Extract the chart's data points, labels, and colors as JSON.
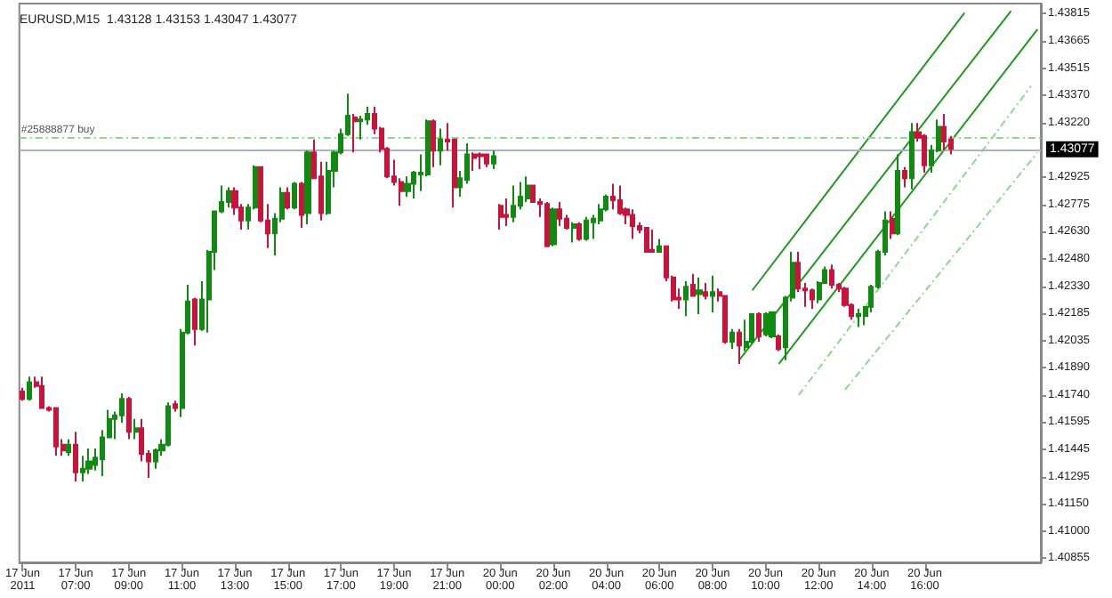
{
  "chart_data": {
    "type": "candlestick",
    "title": "EURUSD,M15  1.43128 1.43153 1.43047 1.43077",
    "categories": [
      "17 Jun 2011",
      null,
      null,
      null,
      null,
      null,
      null,
      null,
      "17 Jun 07:00",
      null,
      null,
      null,
      null,
      null,
      null,
      null,
      "17 Jun 09:00",
      null,
      null,
      null,
      null,
      null,
      null,
      null,
      "17 Jun 11:00",
      null,
      null,
      null,
      null,
      null,
      null,
      null,
      "17 Jun 13:00",
      null,
      null,
      null,
      null,
      null,
      null,
      null,
      "17 Jun 15:00",
      null,
      null,
      null,
      null,
      null,
      null,
      null,
      "17 Jun 17:00",
      null,
      null,
      null,
      null,
      null,
      null,
      null,
      "17 Jun 19:00",
      null,
      null,
      null,
      null,
      null,
      null,
      null,
      "17 Jun 21:00",
      null,
      null,
      null,
      null,
      null,
      null,
      null,
      "20 Jun 00:00",
      null,
      null,
      null,
      null,
      null,
      null,
      null,
      "20 Jun 02:00",
      null,
      null,
      null,
      null,
      null,
      null,
      null,
      "20 Jun 04:00",
      null,
      null,
      null,
      null,
      null,
      null,
      null,
      "20 Jun 06:00",
      null,
      null,
      null,
      null,
      null,
      null,
      null,
      "20 Jun 08:00",
      null,
      null,
      null,
      null,
      null,
      null,
      null,
      "20 Jun 10:00",
      null,
      null,
      null,
      null,
      null,
      null,
      null,
      "20 Jun 12:00",
      null,
      null,
      null,
      null,
      null,
      null,
      null,
      "20 Jun 14:00",
      null,
      null,
      null,
      null,
      null,
      null,
      null,
      "20 Jun 16:00",
      null,
      null,
      null,
      null,
      null,
      null,
      null,
      null,
      null,
      null,
      null,
      null,
      null,
      null,
      null,
      null,
      null
    ],
    "ohlc": [
      [
        1.4176,
        1.4178,
        1.4171,
        1.4172
      ],
      [
        1.4172,
        1.4184,
        1.4171,
        1.4181
      ],
      [
        1.4181,
        1.4184,
        1.4178,
        1.4179
      ],
      [
        1.4179,
        1.4184,
        1.4167,
        1.4167
      ],
      [
        1.4167,
        1.4168,
        1.4165,
        1.4166
      ],
      [
        1.4167,
        1.4167,
        1.4141,
        1.4146
      ],
      [
        1.4147,
        1.415,
        1.4141,
        1.4144
      ],
      [
        1.4143,
        1.415,
        1.4141,
        1.4147
      ],
      [
        1.4147,
        1.4154,
        1.4127,
        1.4132
      ],
      [
        1.4132,
        1.4141,
        1.4127,
        1.4134
      ],
      [
        1.4134,
        1.4145,
        1.4131,
        1.4138
      ],
      [
        1.4136,
        1.4145,
        1.4133,
        1.414
      ],
      [
        1.4139,
        1.4155,
        1.413,
        1.4151
      ],
      [
        1.4151,
        1.4166,
        1.4151,
        1.4161
      ],
      [
        1.4161,
        1.4165,
        1.415,
        1.4163
      ],
      [
        1.4163,
        1.4175,
        1.4159,
        1.4172
      ],
      [
        1.4172,
        1.4173,
        1.415,
        1.4154
      ],
      [
        1.4154,
        1.4161,
        1.415,
        1.4156
      ],
      [
        1.4156,
        1.4161,
        1.4138,
        1.4142
      ],
      [
        1.4142,
        1.4144,
        1.4129,
        1.4138
      ],
      [
        1.4138,
        1.4145,
        1.4134,
        1.4144
      ],
      [
        1.4144,
        1.415,
        1.4141,
        1.4147
      ],
      [
        1.4147,
        1.417,
        1.4146,
        1.4168
      ],
      [
        1.4169,
        1.4171,
        1.4165,
        1.4167
      ],
      [
        1.4167,
        1.421,
        1.4162,
        1.4208
      ],
      [
        1.4208,
        1.4234,
        1.4207,
        1.4225
      ],
      [
        1.4226,
        1.4227,
        1.4201,
        1.421
      ],
      [
        1.421,
        1.4236,
        1.4209,
        1.4226
      ],
      [
        1.4226,
        1.4253,
        1.4208,
        1.4252
      ],
      [
        1.4252,
        1.4274,
        1.4242,
        1.4274
      ],
      [
        1.4274,
        1.4288,
        1.4273,
        1.4279
      ],
      [
        1.4279,
        1.4287,
        1.4276,
        1.4285
      ],
      [
        1.4285,
        1.4287,
        1.4272,
        1.4276
      ],
      [
        1.4276,
        1.4278,
        1.4264,
        1.4269
      ],
      [
        1.4269,
        1.4278,
        1.4264,
        1.4276
      ],
      [
        1.4276,
        1.4299,
        1.4275,
        1.4298
      ],
      [
        1.4298,
        1.4298,
        1.4268,
        1.4269
      ],
      [
        1.4269,
        1.4278,
        1.4254,
        1.4262
      ],
      [
        1.4262,
        1.4273,
        1.425,
        1.427
      ],
      [
        1.427,
        1.4287,
        1.4268,
        1.4284
      ],
      [
        1.4284,
        1.4287,
        1.4275,
        1.4276
      ],
      [
        1.4276,
        1.429,
        1.4275,
        1.4289
      ],
      [
        1.4289,
        1.429,
        1.4265,
        1.4272
      ],
      [
        1.4273,
        1.4307,
        1.4267,
        1.4306
      ],
      [
        1.4306,
        1.4313,
        1.4292,
        1.4292
      ],
      [
        1.4293,
        1.4301,
        1.4269,
        1.4273
      ],
      [
        1.4273,
        1.4301,
        1.4272,
        1.4296
      ],
      [
        1.4296,
        1.4307,
        1.4287,
        1.4306
      ],
      [
        1.4306,
        1.4319,
        1.4305,
        1.4316
      ],
      [
        1.4316,
        1.4338,
        1.4315,
        1.4326
      ],
      [
        1.4325,
        1.4327,
        1.4306,
        1.4323
      ],
      [
        1.4323,
        1.4326,
        1.4313,
        1.4324
      ],
      [
        1.4324,
        1.4331,
        1.4321,
        1.4327
      ],
      [
        1.4327,
        1.4331,
        1.4316,
        1.4319
      ],
      [
        1.4319,
        1.432,
        1.4306,
        1.4308
      ],
      [
        1.4308,
        1.4309,
        1.4292,
        1.4293
      ],
      [
        1.4293,
        1.4302,
        1.4288,
        1.429
      ],
      [
        1.429,
        1.4292,
        1.4277,
        1.4285
      ],
      [
        1.4285,
        1.4293,
        1.4282,
        1.4289
      ],
      [
        1.4289,
        1.4296,
        1.4281,
        1.4295
      ],
      [
        1.4294,
        1.4305,
        1.4285,
        1.4295
      ],
      [
        1.4294,
        1.4324,
        1.4293,
        1.4323
      ],
      [
        1.4323,
        1.4324,
        1.4298,
        1.4307
      ],
      [
        1.4307,
        1.4319,
        1.4299,
        1.4313
      ],
      [
        1.4313,
        1.4322,
        1.4307,
        1.4312
      ],
      [
        1.4313,
        1.4313,
        1.4276,
        1.4287
      ],
      [
        1.4287,
        1.4296,
        1.4282,
        1.4292
      ],
      [
        1.4291,
        1.4311,
        1.4289,
        1.4305
      ],
      [
        1.4305,
        1.4306,
        1.4296,
        1.4303
      ],
      [
        1.4305,
        1.4306,
        1.4297,
        1.4304
      ],
      [
        1.4305,
        1.4305,
        1.4298,
        1.43
      ],
      [
        1.43,
        1.4307,
        1.4297,
        1.4304
      ],
      [
        1.4277,
        1.4278,
        1.4264,
        1.4271
      ],
      [
        1.4272,
        1.4281,
        1.4266,
        1.4271
      ],
      [
        1.4271,
        1.4288,
        1.4268,
        1.4277
      ],
      [
        1.4277,
        1.429,
        1.4275,
        1.4282
      ],
      [
        1.4281,
        1.4293,
        1.4279,
        1.4288
      ],
      [
        1.4288,
        1.4288,
        1.4279,
        1.4279
      ],
      [
        1.4279,
        1.4281,
        1.4271,
        1.4278
      ],
      [
        1.4278,
        1.4279,
        1.4255,
        1.4255
      ],
      [
        1.4256,
        1.4276,
        1.4255,
        1.4275
      ],
      [
        1.4275,
        1.4279,
        1.4266,
        1.427
      ],
      [
        1.427,
        1.4272,
        1.4264,
        1.4265
      ],
      [
        1.4265,
        1.4268,
        1.4257,
        1.4267
      ],
      [
        1.4267,
        1.4268,
        1.4258,
        1.4259
      ],
      [
        1.4259,
        1.4271,
        1.4258,
        1.4269
      ],
      [
        1.4268,
        1.4272,
        1.4259,
        1.427
      ],
      [
        1.4269,
        1.4278,
        1.4267,
        1.4275
      ],
      [
        1.4275,
        1.4283,
        1.4274,
        1.4282
      ],
      [
        1.4282,
        1.4289,
        1.4275,
        1.428
      ],
      [
        1.428,
        1.4288,
        1.4272,
        1.4273
      ],
      [
        1.4275,
        1.4276,
        1.4267,
        1.4272
      ],
      [
        1.4272,
        1.4275,
        1.4259,
        1.4266
      ],
      [
        1.4266,
        1.4268,
        1.4262,
        1.4264
      ],
      [
        1.4265,
        1.4265,
        1.4252,
        1.4252
      ],
      [
        1.4253,
        1.4264,
        1.4252,
        1.4252
      ],
      [
        1.4252,
        1.4259,
        1.4252,
        1.4255
      ],
      [
        1.4255,
        1.4255,
        1.4236,
        1.4238
      ],
      [
        1.4238,
        1.4239,
        1.4225,
        1.4226
      ],
      [
        1.4227,
        1.4232,
        1.4221,
        1.4226
      ],
      [
        1.4226,
        1.4236,
        1.4217,
        1.4233
      ],
      [
        1.4234,
        1.424,
        1.4228,
        1.4228
      ],
      [
        1.4229,
        1.4238,
        1.4218,
        1.4231
      ],
      [
        1.423,
        1.4235,
        1.4226,
        1.4228
      ],
      [
        1.4228,
        1.4239,
        1.4219,
        1.423
      ],
      [
        1.423,
        1.4232,
        1.4225,
        1.4228
      ],
      [
        1.4228,
        1.4228,
        1.4202,
        1.4203
      ],
      [
        1.4203,
        1.421,
        1.4199,
        1.4208
      ],
      [
        1.4208,
        1.421,
        1.4191,
        1.4201
      ],
      [
        1.42,
        1.4215,
        1.4198,
        1.4203
      ],
      [
        1.4203,
        1.4218,
        1.4202,
        1.4218
      ],
      [
        1.4218,
        1.4219,
        1.4203,
        1.4206
      ],
      [
        1.4207,
        1.4219,
        1.4206,
        1.4218
      ],
      [
        1.4206,
        1.4219,
        1.4205,
        1.4219
      ],
      [
        1.4206,
        1.4207,
        1.4198,
        1.4199
      ],
      [
        1.42,
        1.4228,
        1.4193,
        1.4227
      ],
      [
        1.4227,
        1.4252,
        1.4225,
        1.4246
      ],
      [
        1.4246,
        1.4252,
        1.423,
        1.4232
      ],
      [
        1.4232,
        1.4235,
        1.4222,
        1.4231
      ],
      [
        1.4231,
        1.4232,
        1.4221,
        1.4226
      ],
      [
        1.4226,
        1.4236,
        1.4224,
        1.4235
      ],
      [
        1.4235,
        1.4244,
        1.4235,
        1.4242
      ],
      [
        1.4242,
        1.4245,
        1.4232,
        1.4234
      ],
      [
        1.4234,
        1.4235,
        1.423,
        1.4232
      ],
      [
        1.4232,
        1.4233,
        1.4222,
        1.4223
      ],
      [
        1.4223,
        1.4224,
        1.4215,
        1.4217
      ],
      [
        1.4217,
        1.4221,
        1.4211,
        1.4218
      ],
      [
        1.4217,
        1.4222,
        1.4212,
        1.4222
      ],
      [
        1.4222,
        1.4234,
        1.4219,
        1.4233
      ],
      [
        1.4233,
        1.4253,
        1.4232,
        1.4252
      ],
      [
        1.4252,
        1.4274,
        1.425,
        1.4269
      ],
      [
        1.427,
        1.4274,
        1.4259,
        1.4262
      ],
      [
        1.4262,
        1.4305,
        1.4261,
        1.4296
      ],
      [
        1.4296,
        1.4298,
        1.4287,
        1.4292
      ],
      [
        1.4292,
        1.4322,
        1.4286,
        1.4317
      ],
      [
        1.4317,
        1.4322,
        1.4312,
        1.4314
      ],
      [
        1.4315,
        1.4316,
        1.4295,
        1.4299
      ],
      [
        1.4299,
        1.431,
        1.4295,
        1.4307
      ],
      [
        1.4307,
        1.4324,
        1.4306,
        1.432
      ],
      [
        1.432,
        1.4327,
        1.4307,
        1.4312
      ],
      [
        1.4313,
        1.4315,
        1.4305,
        1.4308
      ],
      null,
      null,
      null,
      null,
      null,
      null,
      null,
      null,
      null,
      null,
      null,
      null,
      null
    ],
    "colors": [
      "#c8143c",
      "#118a11",
      "#c8143c",
      "#c8143c",
      "#c8143c",
      "#c8143c",
      "#c8143c",
      "#118a11",
      "#c8143c",
      "#118a11",
      "#118a11",
      "#118a11",
      "#118a11",
      "#118a11",
      "#118a11",
      "#118a11",
      "#c8143c",
      "#118a11",
      "#c8143c",
      "#c8143c",
      "#118a11",
      "#118a11",
      "#118a11",
      "#c8143c",
      "#118a11",
      "#118a11",
      "#c8143c",
      "#118a11",
      "#118a11",
      "#118a11",
      "#118a11",
      "#118a11",
      "#c8143c",
      "#c8143c",
      "#118a11",
      "#118a11",
      "#c8143c",
      "#c8143c",
      "#118a11",
      "#118a11",
      "#c8143c",
      "#118a11",
      "#c8143c",
      "#118a11",
      "#c8143c",
      "#c8143c",
      "#118a11",
      "#118a11",
      "#118a11",
      "#118a11",
      "#c8143c",
      "#118a11",
      "#118a11",
      "#c8143c",
      "#c8143c",
      "#c8143c",
      "#c8143c",
      "#c8143c",
      "#118a11",
      "#118a11",
      "#118a11",
      "#118a11",
      "#c8143c",
      "#118a11",
      "#c8143c",
      "#c8143c",
      "#118a11",
      "#118a11",
      "#c8143c",
      "#c8143c",
      "#c8143c",
      "#118a11",
      "#c8143c",
      "#c8143c",
      "#118a11",
      "#118a11",
      "#118a11",
      "#c8143c",
      "#c8143c",
      "#c8143c",
      "#118a11",
      "#c8143c",
      "#c8143c",
      "#118a11",
      "#c8143c",
      "#118a11",
      "#118a11",
      "#118a11",
      "#118a11",
      "#c8143c",
      "#c8143c",
      "#c8143c",
      "#c8143c",
      "#c8143c",
      "#c8143c",
      "#c8143c",
      "#118a11",
      "#c8143c",
      "#c8143c",
      "#c8143c",
      "#118a11",
      "#c8143c",
      "#118a11",
      "#c8143c",
      "#118a11",
      "#c8143c",
      "#c8143c",
      "#118a11",
      "#c8143c",
      "#118a11",
      "#118a11",
      "#c8143c",
      "#118a11",
      "#118a11",
      "#c8143c",
      "#118a11",
      "#118a11",
      "#c8143c",
      "#c8143c",
      "#c8143c",
      "#118a11",
      "#118a11",
      "#c8143c",
      "#c8143c",
      "#c8143c",
      "#c8143c",
      "#118a11",
      "#118a11",
      "#118a11",
      "#118a11",
      "#118a11",
      "#c8143c",
      "#118a11",
      "#c8143c",
      "#118a11",
      "#c8143c",
      "#c8143c",
      "#118a11",
      "#118a11",
      "#c8143c",
      "#c8143c",
      null,
      null,
      null,
      null,
      null,
      null,
      null,
      null,
      null,
      null,
      null,
      null,
      null
    ],
    "series": [
      {
        "type": "line",
        "color": "#1f9a1f",
        "line_style": "solid",
        "values": [
          null,
          null,
          null,
          null,
          null,
          null,
          null,
          null,
          null,
          null,
          null,
          null,
          null,
          null,
          null,
          null,
          null,
          null,
          null,
          null,
          null,
          null,
          null,
          null,
          null,
          null,
          null,
          null,
          null,
          null,
          null,
          null,
          null,
          null,
          null,
          null,
          null,
          null,
          null,
          null,
          null,
          null,
          null,
          null,
          null,
          null,
          null,
          null,
          null,
          null,
          null,
          null,
          null,
          null,
          null,
          null,
          null,
          null,
          null,
          null,
          null,
          null,
          null,
          null,
          null,
          null,
          null,
          null,
          null,
          null,
          null,
          null,
          null,
          null,
          null,
          null,
          null,
          null,
          null,
          null,
          null,
          null,
          null,
          null,
          null,
          null,
          null,
          null,
          null,
          null,
          null,
          null,
          null,
          null,
          null,
          null,
          null,
          null,
          null,
          null,
          null,
          null,
          null,
          null,
          null,
          null,
          null,
          null,
          1.4193,
          null,
          null,
          null,
          null,
          null,
          null,
          null,
          null,
          null,
          null,
          null,
          null,
          null,
          null,
          null,
          null,
          null,
          null,
          null,
          null,
          null,
          null,
          null,
          null,
          null,
          null,
          null,
          null,
          null,
          null,
          null,
          null,
          null,
          null,
          null,
          null,
          null,
          null,
          null,
          null,
          1.4383,
          null,
          null,
          null,
          null
        ]
      },
      {
        "type": "line",
        "color": "#1f9a1f",
        "line_style": "solid",
        "values": [
          null,
          null,
          null,
          null,
          null,
          null,
          null,
          null,
          null,
          null,
          null,
          null,
          null,
          null,
          null,
          null,
          null,
          null,
          null,
          null,
          null,
          null,
          null,
          null,
          null,
          null,
          null,
          null,
          null,
          null,
          null,
          null,
          null,
          null,
          null,
          null,
          null,
          null,
          null,
          null,
          null,
          null,
          null,
          null,
          null,
          null,
          null,
          null,
          null,
          null,
          null,
          null,
          null,
          null,
          null,
          null,
          null,
          null,
          null,
          null,
          null,
          null,
          null,
          null,
          null,
          null,
          null,
          null,
          null,
          null,
          null,
          null,
          null,
          null,
          null,
          null,
          null,
          null,
          null,
          null,
          null,
          null,
          null,
          null,
          null,
          null,
          null,
          null,
          null,
          null,
          null,
          null,
          null,
          null,
          null,
          null,
          null,
          null,
          null,
          null,
          null,
          null,
          null,
          null,
          null,
          null,
          null,
          null,
          null,
          null,
          1.4231,
          null,
          null,
          null,
          null,
          null,
          null,
          null,
          null,
          null,
          null,
          null,
          null,
          null,
          null,
          null,
          null,
          null,
          null,
          null,
          null,
          null,
          null,
          null,
          null,
          null,
          null,
          null,
          null,
          null,
          null,
          null,
          1.4382,
          null,
          null,
          null,
          null,
          null,
          null,
          null,
          null,
          null,
          null,
          null
        ]
      },
      {
        "type": "line",
        "color": "#1f9a1f",
        "line_style": "solid",
        "values": [
          null,
          null,
          null,
          null,
          null,
          null,
          null,
          null,
          null,
          null,
          null,
          null,
          null,
          null,
          null,
          null,
          null,
          null,
          null,
          null,
          null,
          null,
          null,
          null,
          null,
          null,
          null,
          null,
          null,
          null,
          null,
          null,
          null,
          null,
          null,
          null,
          null,
          null,
          null,
          null,
          null,
          null,
          null,
          null,
          null,
          null,
          null,
          null,
          null,
          null,
          null,
          null,
          null,
          null,
          null,
          null,
          null,
          null,
          null,
          null,
          null,
          null,
          null,
          null,
          null,
          null,
          null,
          null,
          null,
          null,
          null,
          null,
          null,
          null,
          null,
          null,
          null,
          null,
          null,
          null,
          null,
          null,
          null,
          null,
          null,
          null,
          null,
          null,
          null,
          null,
          null,
          null,
          null,
          null,
          null,
          null,
          null,
          null,
          null,
          null,
          null,
          null,
          null,
          null,
          null,
          null,
          null,
          null,
          null,
          null,
          null,
          null,
          null,
          null,
          1.4191,
          null,
          null,
          null,
          null,
          null,
          null,
          null,
          null,
          null,
          null,
          null,
          null,
          null,
          null,
          null,
          null,
          null,
          null,
          null,
          null,
          null,
          null,
          null,
          null,
          null,
          null,
          null,
          null,
          null,
          null,
          null,
          null,
          null,
          null,
          null,
          null,
          null,
          null,
          1.4373
        ]
      },
      {
        "type": "line",
        "color": "#8cd98c",
        "line_style": "dashed",
        "values": [
          null,
          null,
          null,
          null,
          null,
          null,
          null,
          null,
          null,
          null,
          null,
          null,
          null,
          null,
          null,
          null,
          null,
          null,
          null,
          null,
          null,
          null,
          null,
          null,
          null,
          null,
          null,
          null,
          null,
          null,
          null,
          null,
          null,
          null,
          null,
          null,
          null,
          null,
          null,
          null,
          null,
          null,
          null,
          null,
          null,
          null,
          null,
          null,
          null,
          null,
          null,
          null,
          null,
          null,
          null,
          null,
          null,
          null,
          null,
          null,
          null,
          null,
          null,
          null,
          null,
          null,
          null,
          null,
          null,
          null,
          null,
          null,
          null,
          null,
          null,
          null,
          null,
          null,
          null,
          null,
          null,
          null,
          null,
          null,
          null,
          null,
          null,
          null,
          null,
          null,
          null,
          null,
          null,
          null,
          null,
          null,
          null,
          null,
          null,
          null,
          null,
          null,
          null,
          null,
          null,
          null,
          null,
          null,
          null,
          null,
          null,
          null,
          null,
          null,
          null,
          null,
          null,
          1.4174,
          null,
          null,
          null,
          null,
          null,
          null,
          null,
          null,
          null,
          null,
          null,
          null,
          null,
          null,
          null,
          null,
          null,
          null,
          null,
          null,
          null,
          null,
          null,
          null,
          null,
          null,
          null,
          null,
          null,
          null,
          null,
          null,
          null,
          null,
          1.4342,
          null
        ]
      },
      {
        "type": "line",
        "color": "#8cd98c",
        "line_style": "dashed",
        "values": [
          null,
          null,
          null,
          null,
          null,
          null,
          null,
          null,
          null,
          null,
          null,
          null,
          null,
          null,
          null,
          null,
          null,
          null,
          null,
          null,
          null,
          null,
          null,
          null,
          null,
          null,
          null,
          null,
          null,
          null,
          null,
          null,
          null,
          null,
          null,
          null,
          null,
          null,
          null,
          null,
          null,
          null,
          null,
          null,
          null,
          null,
          null,
          null,
          null,
          null,
          null,
          null,
          null,
          null,
          null,
          null,
          null,
          null,
          null,
          null,
          null,
          null,
          null,
          null,
          null,
          null,
          null,
          null,
          null,
          null,
          null,
          null,
          null,
          null,
          null,
          null,
          null,
          null,
          null,
          null,
          null,
          null,
          null,
          null,
          null,
          null,
          null,
          null,
          null,
          null,
          null,
          null,
          null,
          null,
          null,
          null,
          null,
          null,
          null,
          null,
          null,
          null,
          null,
          null,
          null,
          null,
          null,
          null,
          null,
          null,
          null,
          null,
          null,
          null,
          null,
          null,
          null,
          null,
          null,
          null,
          null,
          null,
          null,
          null,
          1.4177,
          null,
          null,
          null,
          null,
          null,
          null,
          null,
          null,
          null,
          null,
          null,
          null,
          null,
          null,
          null,
          null,
          null,
          null,
          null,
          null,
          null,
          null,
          null,
          null,
          null,
          null,
          null,
          null,
          1.4306
        ]
      }
    ],
    "ylim": [
      1.4083,
      1.4387
    ],
    "yticks": [
      1.40855,
      {
        "value": 1.41,
        "label": "1.41000"
      },
      {
        "value": 1.4115,
        "label": "1.41150"
      },
      1.41295,
      1.41445,
      1.41595,
      {
        "value": 1.4174,
        "label": "1.41740"
      },
      {
        "value": 1.4189,
        "label": "1.41890"
      },
      1.42035,
      1.42185,
      {
        "value": 1.4233,
        "label": "1.42330"
      },
      {
        "value": 1.4248,
        "label": "1.42480"
      },
      {
        "value": 1.4263,
        "label": "1.42630"
      },
      1.42775,
      1.42925,
      {
        "value": 1.4322,
        "label": "1.43220"
      },
      {
        "value": 1.4337,
        "label": "1.43370"
      },
      1.43515,
      1.43665,
      1.43815
    ],
    "ref_lines": [
      {
        "axis": "y",
        "value": 1.4314,
        "label": "#25888877 buy",
        "color": "#8cd98c",
        "line_style": "dashed"
      },
      {
        "axis": "y",
        "value": 1.43077,
        "label": "1.43077",
        "color": "#aab4c0",
        "line_style": "solid"
      }
    ],
    "marker": "none",
    "grid": false
  }
}
